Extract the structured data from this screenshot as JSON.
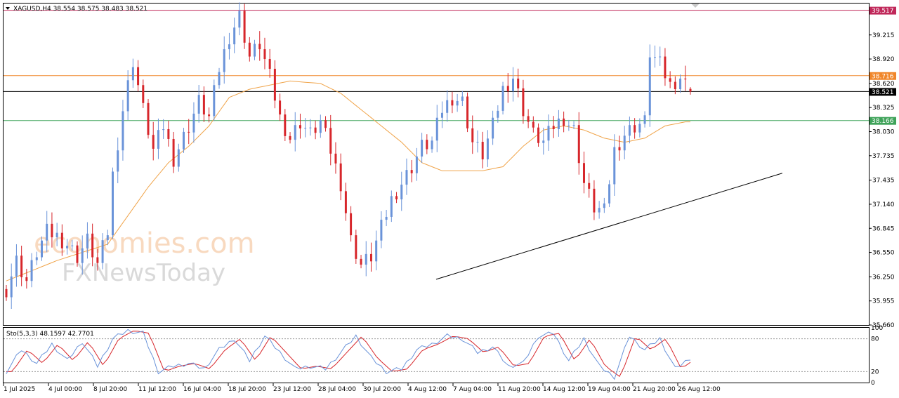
{
  "chart_info": {
    "symbol_line": "XAGUSD,H4  38.554 38.575 38.483 38.521",
    "osc_label": "Sto(5,3,3) 48.1597 42.7701"
  },
  "watermark": {
    "line1": "economies.com",
    "line2": "FXNewsToday"
  },
  "colors": {
    "bull": "#6a93d9",
    "bear": "#d7262b",
    "ma": "#f0a44a",
    "resistance": "#c0285a",
    "level_orange": "#f0862a",
    "level_green": "#3fa35a",
    "current": "#000000",
    "sto_main": "#6a93d9",
    "sto_signal": "#d7262b"
  },
  "chart_data": {
    "type": "candlestick",
    "title": "XAGUSD,H4",
    "ohlc_last": {
      "open": 38.554,
      "high": 38.575,
      "low": 38.483,
      "close": 38.521
    },
    "ylim": [
      35.66,
      39.6
    ],
    "y_ticks": [
      "39.215",
      "38.920",
      "38.620",
      "38.325",
      "38.030",
      "37.735",
      "37.435",
      "37.140",
      "36.845",
      "36.550",
      "36.250",
      "35.955",
      "35.660"
    ],
    "x_ticks": [
      "1 Jul 2025",
      "4 Jul 00:00",
      "8 Jul 20:00",
      "11 Jul 12:00",
      "16 Jul 04:00",
      "18 Jul 20:00",
      "23 Jul 12:00",
      "28 Jul 04:00",
      "30 Jul 20:00",
      "4 Aug 12:00",
      "7 Aug 04:00",
      "11 Aug 20:00",
      "14 Aug 12:00",
      "19 Aug 04:00",
      "21 Aug 20:00",
      "26 Aug 12:00"
    ],
    "price_levels": [
      {
        "name": "resistance",
        "value": "39.517",
        "color": "#c0285a"
      },
      {
        "name": "orange-level",
        "value": "38.716",
        "color": "#f0862a"
      },
      {
        "name": "current-price",
        "value": "38.521",
        "color": "#000000"
      },
      {
        "name": "green-level",
        "value": "38.166",
        "color": "#3fa35a"
      }
    ],
    "trendline": {
      "from": {
        "x_index": 0.5,
        "price": 36.22
      },
      "to": {
        "x_index": 0.9,
        "price": 37.52
      }
    },
    "path_points": [
      [
        0,
        36.1
      ],
      [
        2,
        36.45
      ],
      [
        4,
        36.2
      ],
      [
        6,
        36.55
      ],
      [
        8,
        36.8
      ],
      [
        10,
        36.75
      ],
      [
        12,
        36.65
      ],
      [
        14,
        36.5
      ],
      [
        16,
        36.7
      ],
      [
        18,
        36.4
      ],
      [
        20,
        36.8
      ],
      [
        21,
        37.5
      ],
      [
        23,
        38.3
      ],
      [
        25,
        38.9
      ],
      [
        27,
        38.3
      ],
      [
        29,
        37.8
      ],
      [
        31,
        38.1
      ],
      [
        33,
        37.7
      ],
      [
        36,
        38.1
      ],
      [
        38,
        38.4
      ],
      [
        40,
        38.2
      ],
      [
        42,
        38.8
      ],
      [
        44,
        39.2
      ],
      [
        46,
        39.45
      ],
      [
        48,
        38.95
      ],
      [
        50,
        39.1
      ],
      [
        52,
        38.7
      ],
      [
        54,
        38.2
      ],
      [
        56,
        37.95
      ],
      [
        58,
        38.15
      ],
      [
        60,
        38.0
      ],
      [
        62,
        38.15
      ],
      [
        64,
        37.8
      ],
      [
        66,
        37.4
      ],
      [
        68,
        36.7
      ],
      [
        70,
        36.4
      ],
      [
        72,
        36.5
      ],
      [
        74,
        36.85
      ],
      [
        76,
        37.2
      ],
      [
        78,
        37.4
      ],
      [
        80,
        37.6
      ],
      [
        82,
        37.85
      ],
      [
        84,
        37.9
      ],
      [
        86,
        38.3
      ],
      [
        88,
        38.45
      ],
      [
        90,
        38.4
      ],
      [
        92,
        37.9
      ],
      [
        94,
        37.75
      ],
      [
        96,
        38.1
      ],
      [
        98,
        38.55
      ],
      [
        100,
        38.7
      ],
      [
        102,
        38.3
      ],
      [
        104,
        38.0
      ],
      [
        106,
        37.9
      ],
      [
        108,
        38.1
      ],
      [
        110,
        38.2
      ],
      [
        112,
        38.05
      ],
      [
        114,
        37.4
      ],
      [
        116,
        37.1
      ],
      [
        118,
        37.05
      ],
      [
        120,
        37.8
      ],
      [
        122,
        38.0
      ],
      [
        124,
        38.1
      ],
      [
        126,
        38.15
      ],
      [
        127,
        39.0
      ],
      [
        129,
        38.85
      ],
      [
        131,
        38.6
      ],
      [
        133,
        38.7
      ],
      [
        135,
        38.52
      ]
    ],
    "ma_points": [
      [
        0,
        36.2
      ],
      [
        10,
        36.45
      ],
      [
        20,
        36.65
      ],
      [
        24,
        37.0
      ],
      [
        28,
        37.35
      ],
      [
        32,
        37.65
      ],
      [
        36,
        37.85
      ],
      [
        40,
        38.1
      ],
      [
        44,
        38.45
      ],
      [
        48,
        38.55
      ],
      [
        52,
        38.6
      ],
      [
        56,
        38.65
      ],
      [
        62,
        38.62
      ],
      [
        66,
        38.5
      ],
      [
        72,
        38.2
      ],
      [
        78,
        37.9
      ],
      [
        82,
        37.65
      ],
      [
        86,
        37.55
      ],
      [
        90,
        37.55
      ],
      [
        94,
        37.55
      ],
      [
        98,
        37.6
      ],
      [
        102,
        37.85
      ],
      [
        106,
        38.05
      ],
      [
        110,
        38.1
      ],
      [
        114,
        38.05
      ],
      [
        118,
        37.95
      ],
      [
        122,
        37.9
      ],
      [
        126,
        37.95
      ],
      [
        130,
        38.1
      ],
      [
        134,
        38.15
      ]
    ],
    "oscillator": {
      "name": "Sto(5,3,3)",
      "main": 48.1597,
      "signal": 42.7701,
      "ylim": [
        0,
        100
      ],
      "levels": [
        20,
        80
      ],
      "y_ticks": [
        "100",
        "80",
        "20",
        "0"
      ],
      "k_points": [
        [
          0,
          20
        ],
        [
          3,
          60
        ],
        [
          6,
          35
        ],
        [
          9,
          70
        ],
        [
          12,
          40
        ],
        [
          15,
          75
        ],
        [
          18,
          30
        ],
        [
          21,
          80
        ],
        [
          24,
          95
        ],
        [
          27,
          90
        ],
        [
          30,
          20
        ],
        [
          33,
          30
        ],
        [
          36,
          35
        ],
        [
          39,
          25
        ],
        [
          42,
          60
        ],
        [
          45,
          80
        ],
        [
          48,
          40
        ],
        [
          51,
          85
        ],
        [
          54,
          55
        ],
        [
          57,
          25
        ],
        [
          60,
          30
        ],
        [
          63,
          25
        ],
        [
          66,
          55
        ],
        [
          69,
          85
        ],
        [
          72,
          45
        ],
        [
          75,
          20
        ],
        [
          78,
          25
        ],
        [
          81,
          60
        ],
        [
          84,
          70
        ],
        [
          87,
          85
        ],
        [
          90,
          80
        ],
        [
          93,
          55
        ],
        [
          96,
          65
        ],
        [
          99,
          30
        ],
        [
          102,
          35
        ],
        [
          105,
          85
        ],
        [
          108,
          90
        ],
        [
          111,
          40
        ],
        [
          114,
          80
        ],
        [
          117,
          30
        ],
        [
          120,
          10
        ],
        [
          123,
          85
        ],
        [
          126,
          60
        ],
        [
          129,
          80
        ],
        [
          132,
          25
        ],
        [
          135,
          45
        ]
      ]
    }
  }
}
